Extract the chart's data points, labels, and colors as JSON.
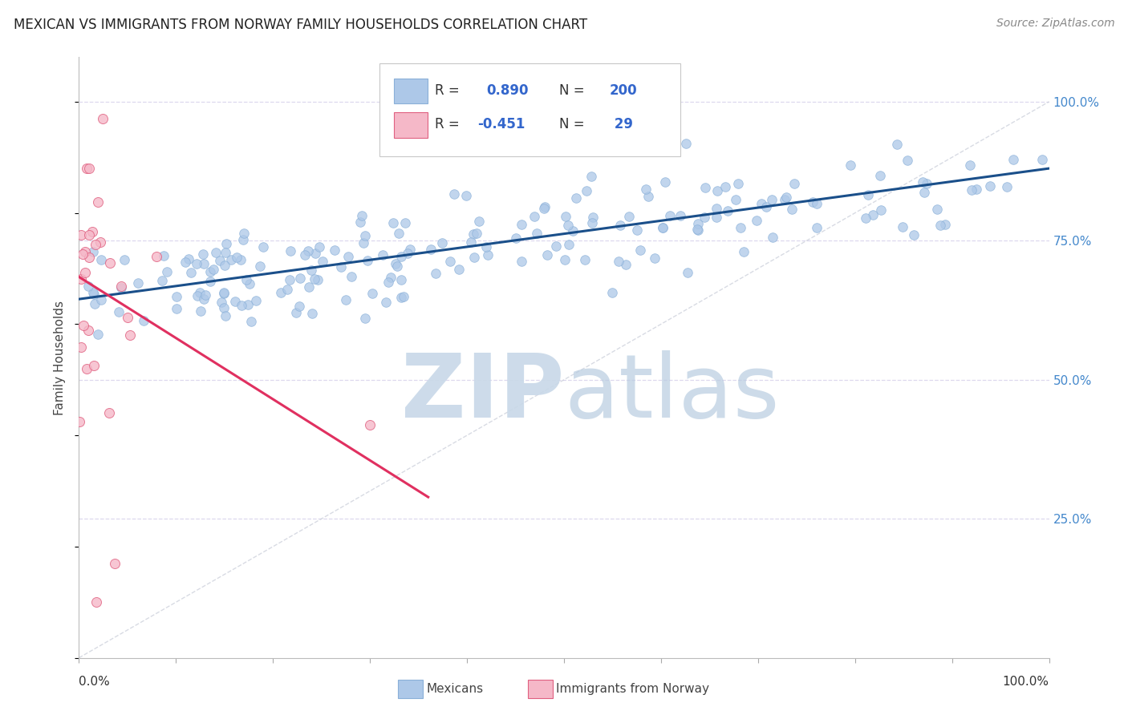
{
  "title": "MEXICAN VS IMMIGRANTS FROM NORWAY FAMILY HOUSEHOLDS CORRELATION CHART",
  "source": "Source: ZipAtlas.com",
  "ylabel": "Family Households",
  "right_yticks": [
    "25.0%",
    "50.0%",
    "75.0%",
    "100.0%"
  ],
  "right_ytick_vals": [
    0.25,
    0.5,
    0.75,
    1.0
  ],
  "ylim": [
    0.0,
    1.08
  ],
  "xlim": [
    0.0,
    1.0
  ],
  "blue_R": 0.89,
  "blue_N": 200,
  "pink_R": -0.451,
  "pink_N": 29,
  "blue_color": "#adc8e8",
  "blue_edge_color": "#8ab0d8",
  "blue_line_color": "#1a4f8a",
  "pink_color": "#f5b8c8",
  "pink_edge_color": "#e06080",
  "pink_line_color": "#e03060",
  "ref_line_color": "#c8ccd8",
  "watermark_zip_color": "#c8d8e8",
  "watermark_atlas_color": "#b8cce0",
  "legend_label_blue": "Mexicans",
  "legend_label_pink": "Immigrants from Norway",
  "background_color": "#ffffff",
  "grid_color": "#ddd8ee",
  "title_fontsize": 12,
  "source_fontsize": 10,
  "blue_line_intercept": 0.645,
  "blue_line_slope": 0.235,
  "pink_line_intercept": 0.685,
  "pink_line_slope": -1.1,
  "pink_line_x_end": 0.36
}
